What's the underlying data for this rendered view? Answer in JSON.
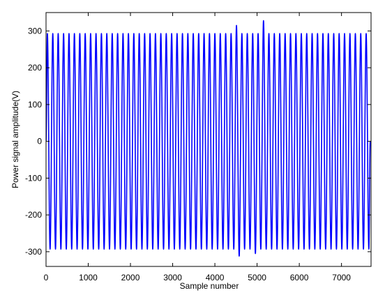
{
  "chart_data": {
    "type": "line",
    "xlabel": "Sample number",
    "ylabel": "Power signal amplitude(V)",
    "x": [
      0,
      32,
      96,
      160,
      224,
      288,
      352,
      416,
      480,
      544,
      608,
      672,
      736,
      800,
      864,
      928,
      992,
      1056,
      1120,
      1184,
      1248,
      1312,
      1376,
      1440,
      1504,
      1568,
      1632,
      1696,
      1760,
      1824,
      1888,
      1952,
      2016,
      2080,
      2144,
      2208,
      2272,
      2336,
      2400,
      2464,
      2528,
      2592,
      2656,
      2720,
      2784,
      2848,
      2912,
      2976,
      3040,
      3104,
      3168,
      3232,
      3296,
      3360,
      3424,
      3488,
      3552,
      3616,
      3680,
      3744,
      3808,
      3872,
      3936,
      4000,
      4064,
      4128,
      4192,
      4256,
      4320,
      4384,
      4448,
      4512,
      4576,
      4640,
      4704,
      4768,
      4832,
      4896,
      4960,
      5024,
      5088,
      5152,
      5216,
      5280,
      5344,
      5408,
      5472,
      5536,
      5600,
      5664,
      5728,
      5792,
      5856,
      5920,
      5984,
      6048,
      6112,
      6176,
      6240,
      6304,
      6368,
      6432,
      6496,
      6560,
      6624,
      6688,
      6752,
      6816,
      6880,
      6944,
      7008,
      7072,
      7136,
      7200,
      7264,
      7328,
      7392,
      7456,
      7520,
      7584,
      7648,
      7680
    ],
    "series": [
      {
        "color": "#0000ff",
        "values": [
          0,
          293,
          -293,
          293,
          -293,
          293,
          -293,
          293,
          -293,
          293,
          -293,
          293,
          -293,
          293,
          -293,
          293,
          -293,
          293,
          -293,
          293,
          -293,
          293,
          -293,
          293,
          -293,
          293,
          -293,
          293,
          -293,
          293,
          -293,
          293,
          -293,
          293,
          -293,
          293,
          -293,
          293,
          -293,
          293,
          -293,
          293,
          -293,
          293,
          -293,
          293,
          -293,
          293,
          -293,
          293,
          -293,
          293,
          -293,
          293,
          -293,
          293,
          -293,
          293,
          -293,
          293,
          -293,
          293,
          -293,
          293,
          -293,
          293,
          -293,
          293,
          -293,
          293,
          -293,
          315,
          -312,
          293,
          -293,
          293,
          -293,
          293,
          -305,
          293,
          -293,
          328,
          -293,
          293,
          -293,
          293,
          -293,
          293,
          -293,
          293,
          -293,
          293,
          -293,
          293,
          -293,
          293,
          -293,
          293,
          -293,
          293,
          -293,
          293,
          -293,
          293,
          -293,
          293,
          -293,
          293,
          -293,
          293,
          -293,
          293,
          -293,
          293,
          -293,
          293,
          -293,
          293,
          -293,
          293,
          -293,
          0
        ]
      }
    ],
    "xlim": [
      0,
      7700
    ],
    "xticks": [
      0,
      1000,
      2000,
      3000,
      4000,
      5000,
      6000,
      7000
    ],
    "ylim": [
      -340,
      350
    ],
    "yticks": [
      -300,
      -200,
      -100,
      0,
      100,
      200,
      300
    ],
    "grid": false
  }
}
